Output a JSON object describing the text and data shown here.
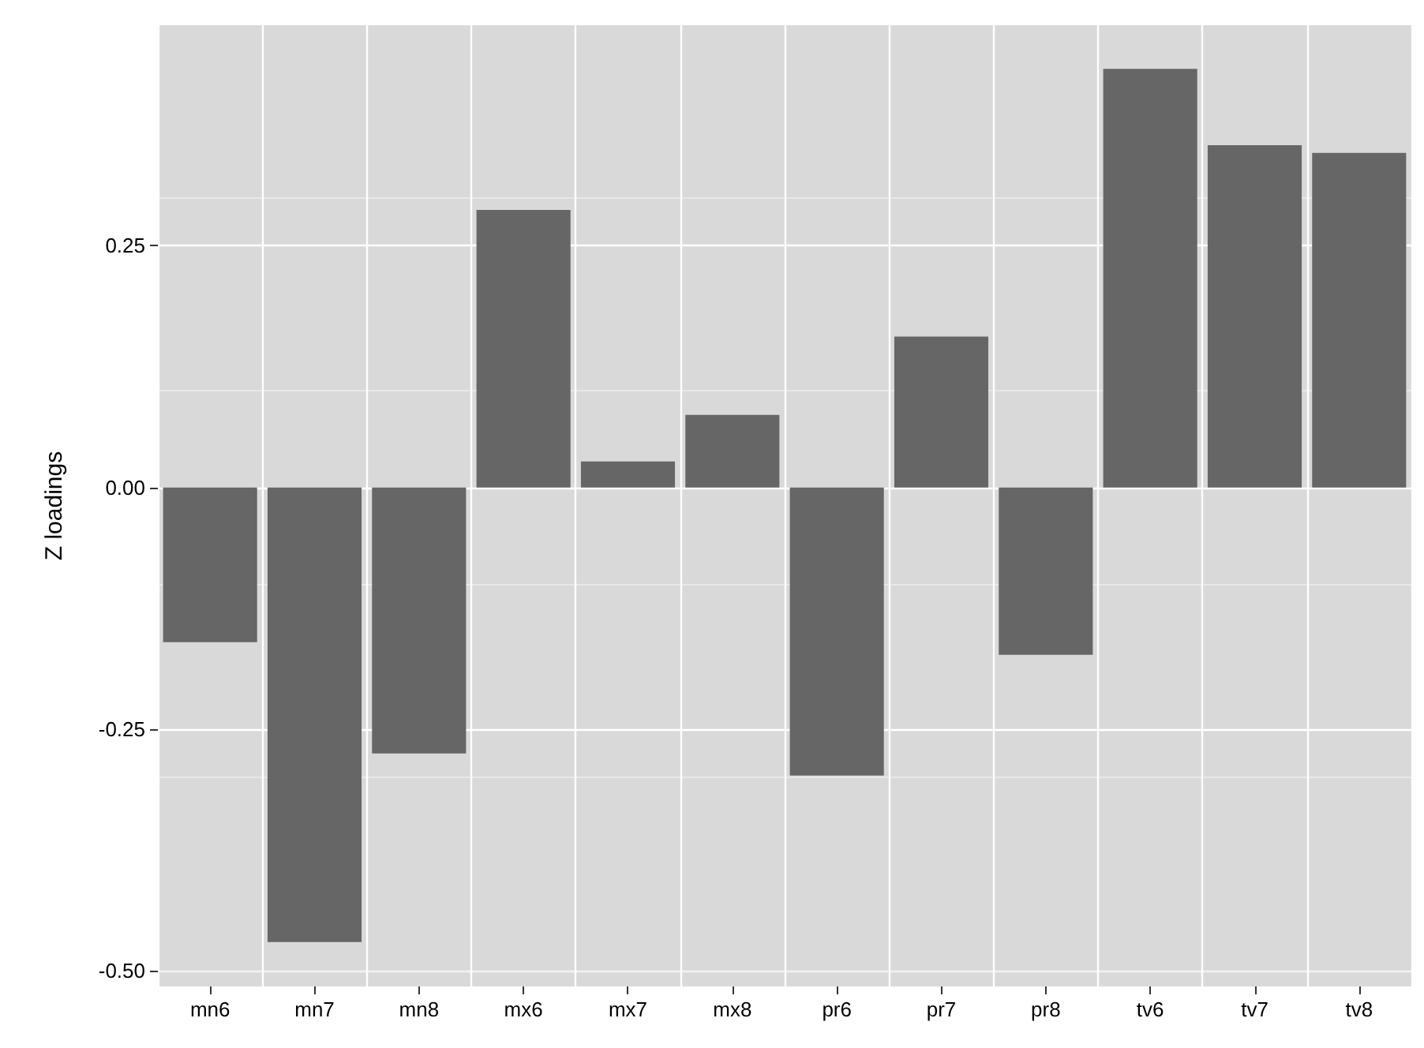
{
  "chart_data": {
    "type": "bar",
    "ylabel": "Z loadings",
    "categories": [
      "mn6",
      "mn7",
      "mn8",
      "mx6",
      "mx7",
      "mx8",
      "pr6",
      "pr7",
      "pr8",
      "tv6",
      "tv7",
      "tv8"
    ],
    "values": [
      -0.16,
      -0.47,
      -0.275,
      0.287,
      0.027,
      0.075,
      -0.298,
      0.156,
      -0.173,
      0.433,
      0.354,
      0.346
    ],
    "color": "#666666",
    "ylim": [
      -0.516,
      0.478
    ],
    "yticks": [
      {
        "value": -0.5,
        "label": "-0.50"
      },
      {
        "value": -0.25,
        "label": "-0.25"
      },
      {
        "value": 0,
        "label": "0.00"
      },
      {
        "value": 0.25,
        "label": "0.25"
      }
    ],
    "grid": true
  }
}
